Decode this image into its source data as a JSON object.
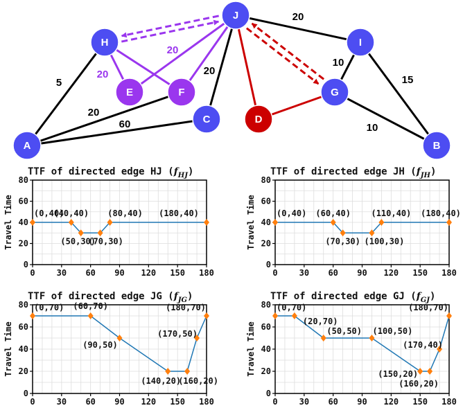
{
  "graph": {
    "nodes": [
      {
        "id": "J",
        "color": "#4d4df2"
      },
      {
        "id": "H",
        "color": "#4d4df2"
      },
      {
        "id": "I",
        "color": "#4d4df2"
      },
      {
        "id": "E",
        "color": "#9a36ee"
      },
      {
        "id": "F",
        "color": "#9a36ee"
      },
      {
        "id": "G",
        "color": "#4d4df2"
      },
      {
        "id": "C",
        "color": "#4d4df2"
      },
      {
        "id": "D",
        "color": "#cc0000"
      },
      {
        "id": "A",
        "color": "#4d4df2"
      },
      {
        "id": "B",
        "color": "#4d4df2"
      }
    ],
    "edges": [
      {
        "from": "A",
        "to": "H",
        "style": "black",
        "weight": "5"
      },
      {
        "from": "A",
        "to": "F",
        "style": "black",
        "weight": "20"
      },
      {
        "from": "A",
        "to": "C",
        "style": "black",
        "weight": "60"
      },
      {
        "from": "C",
        "to": "J",
        "style": "black",
        "weight": "20"
      },
      {
        "from": "J",
        "to": "I",
        "style": "black",
        "weight": "20"
      },
      {
        "from": "I",
        "to": "G",
        "style": "black",
        "weight": "10"
      },
      {
        "from": "I",
        "to": "B",
        "style": "black",
        "weight": "15"
      },
      {
        "from": "G",
        "to": "B",
        "style": "black",
        "weight": "10"
      },
      {
        "from": "H",
        "to": "E",
        "style": "purple",
        "weight": "20"
      },
      {
        "from": "H",
        "to": "F",
        "style": "purple",
        "weight": ""
      },
      {
        "from": "E",
        "to": "J",
        "style": "purple",
        "weight": "20"
      },
      {
        "from": "F",
        "to": "J",
        "style": "purple",
        "weight": ""
      },
      {
        "from": "J",
        "to": "D",
        "style": "red",
        "weight": ""
      },
      {
        "from": "D",
        "to": "G",
        "style": "red",
        "weight": ""
      }
    ],
    "directed_dashed": [
      {
        "from": "H",
        "to": "J",
        "color": "#9a36ee"
      },
      {
        "from": "J",
        "to": "H",
        "color": "#9a36ee"
      },
      {
        "from": "J",
        "to": "G",
        "color": "#cc0000"
      },
      {
        "from": "G",
        "to": "J",
        "color": "#cc0000"
      }
    ],
    "colors": {
      "black": "#000000",
      "purple": "#9a36ee",
      "red": "#cc0000"
    }
  },
  "chart_data": [
    {
      "type": "line",
      "title_prefix": "TTF of directed edge HJ (",
      "title_f": "f",
      "title_sub": "HJ",
      "title_suffix": ")",
      "ylabel": "Travel Time",
      "xlim": [
        0,
        180
      ],
      "ylim": [
        0,
        80
      ],
      "xticks": [
        0,
        30,
        60,
        90,
        120,
        150,
        180
      ],
      "yticks": [
        0,
        20,
        40,
        60,
        80
      ],
      "points": [
        [
          0,
          40
        ],
        [
          40,
          40
        ],
        [
          50,
          30
        ],
        [
          70,
          30
        ],
        [
          80,
          40
        ],
        [
          180,
          40
        ]
      ],
      "labels": [
        "(0,40)",
        "(40,40)",
        "(50,30)",
        "(70,30)",
        "(80,40)",
        "(180,40)"
      ],
      "grid": true
    },
    {
      "type": "line",
      "title_prefix": "TTF of directed edge JH (",
      "title_f": "f",
      "title_sub": "JH",
      "title_suffix": ")",
      "ylabel": "Travel Time",
      "xlim": [
        0,
        180
      ],
      "ylim": [
        0,
        80
      ],
      "xticks": [
        0,
        30,
        60,
        90,
        120,
        150,
        180
      ],
      "yticks": [
        0,
        20,
        40,
        60,
        80
      ],
      "points": [
        [
          0,
          40
        ],
        [
          60,
          40
        ],
        [
          70,
          30
        ],
        [
          100,
          30
        ],
        [
          110,
          40
        ],
        [
          180,
          40
        ]
      ],
      "labels": [
        "(0,40)",
        "(60,40)",
        "(70,30)",
        "(100,30)",
        "(110,40)",
        "(180,40)"
      ],
      "grid": true
    },
    {
      "type": "line",
      "title_prefix": "TTF of directed edge JG (",
      "title_f": "f",
      "title_sub": "JG",
      "title_suffix": ")",
      "ylabel": "Travel Time",
      "xlim": [
        0,
        180
      ],
      "ylim": [
        0,
        80
      ],
      "xticks": [
        0,
        30,
        60,
        90,
        120,
        150,
        180
      ],
      "yticks": [
        0,
        20,
        40,
        60,
        80
      ],
      "points": [
        [
          0,
          70
        ],
        [
          60,
          70
        ],
        [
          90,
          50
        ],
        [
          140,
          20
        ],
        [
          160,
          20
        ],
        [
          170,
          50
        ],
        [
          180,
          70
        ]
      ],
      "labels": [
        "(0,70)",
        "(60,70)",
        "(90,50)",
        "(140,20)",
        "(160,20)",
        "(170,50)",
        "(180,70)"
      ],
      "grid": true
    },
    {
      "type": "line",
      "title_prefix": "TTF of directed edge GJ (",
      "title_f": "f",
      "title_sub": "GJ",
      "title_suffix": ")",
      "ylabel": "Travel Time",
      "xlim": [
        0,
        180
      ],
      "ylim": [
        0,
        80
      ],
      "xticks": [
        0,
        30,
        60,
        90,
        120,
        150,
        180
      ],
      "yticks": [
        0,
        20,
        40,
        60,
        80
      ],
      "points": [
        [
          0,
          70
        ],
        [
          20,
          70
        ],
        [
          50,
          50
        ],
        [
          100,
          50
        ],
        [
          150,
          20
        ],
        [
          160,
          20
        ],
        [
          170,
          40
        ],
        [
          180,
          70
        ]
      ],
      "labels": [
        "(0,70)",
        "(20,70)",
        "(50,50)",
        "(100,50)",
        "(150,20)",
        "(160,20)",
        "(170,40)",
        "(180,70)"
      ],
      "grid": true
    }
  ]
}
